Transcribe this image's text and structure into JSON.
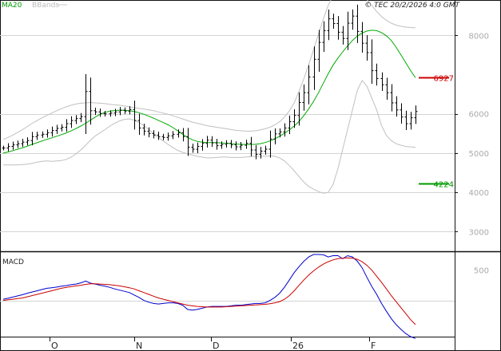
{
  "chart_data": [
    {
      "type": "ohlc",
      "legend": [
        {
          "label": "MA20",
          "color": "#00aa00"
        },
        {
          "label": "BBands",
          "color": "#c0c0c0"
        }
      ],
      "copyright": "© TEC 20/2/2026 4:0 GMT",
      "ylim": [
        2500,
        8900
      ],
      "y_ticks": [
        "3000",
        "4000",
        "5000",
        "6000",
        "8000"
      ],
      "x_labels": [
        "O",
        "N",
        "D",
        "26",
        "F"
      ],
      "grid": true,
      "levels": [
        {
          "value": 6927,
          "label": "6927",
          "color": "#cc0000"
        },
        {
          "value": 4224,
          "label": "4224",
          "color": "#009900"
        }
      ],
      "close": [
        5130,
        5170,
        5210,
        5240,
        5280,
        5320,
        5420,
        5460,
        5480,
        5520,
        5580,
        5630,
        5660,
        5750,
        5830,
        5880,
        5930,
        6570,
        6080,
        6050,
        6010,
        6000,
        6020,
        6050,
        6090,
        6070,
        6110,
        5830,
        5640,
        5560,
        5500,
        5460,
        5420,
        5400,
        5440,
        5480,
        5520,
        5420,
        5150,
        5100,
        5170,
        5250,
        5330,
        5260,
        5190,
        5220,
        5250,
        5210,
        5160,
        5200,
        5250,
        5080,
        4970,
        5050,
        5100,
        5360,
        5490,
        5540,
        5640,
        5800,
        5960,
        6290,
        6540,
        6940,
        7390,
        7820,
        8120,
        8420,
        8300,
        8080,
        7920,
        8310,
        8490,
        8100,
        7800,
        7560,
        7100,
        6900,
        6740,
        6540,
        6280,
        6100,
        5920,
        5750,
        5900,
        6060
      ],
      "ma20": [
        5000,
        5030,
        5065,
        5100,
        5135,
        5180,
        5225,
        5265,
        5310,
        5350,
        5390,
        5430,
        5470,
        5515,
        5565,
        5625,
        5690,
        5760,
        5840,
        5920,
        5990,
        6040,
        6070,
        6085,
        6095,
        6095,
        6080,
        6060,
        6030,
        5990,
        5940,
        5890,
        5835,
        5780,
        5720,
        5650,
        5570,
        5480,
        5400,
        5340,
        5300,
        5280,
        5270,
        5270,
        5270,
        5260,
        5250,
        5240,
        5230,
        5225,
        5220,
        5220,
        5225,
        5240,
        5270,
        5310,
        5365,
        5430,
        5510,
        5590,
        5690,
        5810,
        5960,
        6130,
        6320,
        6540,
        6780,
        7020,
        7240,
        7420,
        7580,
        7730,
        7870,
        7980,
        8060,
        8110,
        8130,
        8120,
        8070,
        7990,
        7870,
        7700,
        7500,
        7300,
        7100,
        6920
      ],
      "bb_upper": [
        5350,
        5400,
        5460,
        5530,
        5600,
        5680,
        5760,
        5830,
        5900,
        5960,
        6020,
        6080,
        6130,
        6180,
        6220,
        6250,
        6270,
        6280,
        6290,
        6280,
        6270,
        6260,
        6240,
        6230,
        6220,
        6200,
        6180,
        6160,
        6140,
        6120,
        6100,
        6080,
        6050,
        6020,
        5990,
        5950,
        5910,
        5870,
        5830,
        5790,
        5760,
        5730,
        5700,
        5680,
        5660,
        5640,
        5620,
        5600,
        5580,
        5570,
        5560,
        5560,
        5570,
        5590,
        5620,
        5660,
        5720,
        5800,
        5920,
        6080,
        6280,
        6580,
        6900,
        7260,
        7640,
        8030,
        8420,
        8760,
        9020,
        9170,
        9240,
        9260,
        9230,
        9150,
        9040,
        8910,
        8760,
        8610,
        8480,
        8380,
        8310,
        8260,
        8230,
        8210,
        8200,
        8190
      ],
      "bb_lower": [
        4700,
        4700,
        4700,
        4700,
        4710,
        4720,
        4740,
        4770,
        4790,
        4800,
        4790,
        4800,
        4810,
        4840,
        4900,
        4980,
        5080,
        5200,
        5330,
        5440,
        5520,
        5600,
        5690,
        5760,
        5820,
        5860,
        5870,
        5840,
        5780,
        5700,
        5600,
        5500,
        5400,
        5310,
        5220,
        5140,
        5070,
        5020,
        4980,
        4950,
        4920,
        4900,
        4880,
        4880,
        4890,
        4900,
        4900,
        4890,
        4890,
        4890,
        4900,
        4910,
        4920,
        4920,
        4920,
        4930,
        4920,
        4880,
        4800,
        4680,
        4550,
        4400,
        4260,
        4150,
        4080,
        4020,
        3980,
        4000,
        4200,
        4600,
        5100,
        5600,
        6100,
        6600,
        6850,
        6700,
        6400,
        6100,
        5700,
        5450,
        5320,
        5240,
        5200,
        5170,
        5160,
        5150
      ]
    },
    {
      "type": "line",
      "title": "MACD",
      "ylim": [
        -600,
        800
      ],
      "y_ticks": [
        "500"
      ],
      "zero_line": 0,
      "series": [
        {
          "name": "MACD",
          "color": "#0000cc",
          "values": [
            20,
            35,
            55,
            75,
            95,
            120,
            140,
            160,
            180,
            200,
            210,
            220,
            235,
            245,
            260,
            270,
            290,
            320,
            285,
            270,
            250,
            235,
            215,
            190,
            170,
            150,
            130,
            90,
            50,
            0,
            -30,
            -50,
            -60,
            -50,
            -40,
            -40,
            -50,
            -80,
            -150,
            -160,
            -150,
            -130,
            -110,
            -100,
            -100,
            -100,
            -100,
            -90,
            -80,
            -80,
            -70,
            -60,
            -50,
            -50,
            -40,
            0,
            50,
            120,
            220,
            340,
            460,
            560,
            650,
            720,
            760,
            760,
            755,
            720,
            740,
            740,
            690,
            740,
            720,
            650,
            540,
            380,
            230,
            100,
            -50,
            -180,
            -300,
            -400,
            -480,
            -550,
            -600,
            -630
          ]
        },
        {
          "name": "Signal",
          "color": "#cc0000",
          "values": [
            0,
            10,
            20,
            30,
            40,
            60,
            80,
            100,
            120,
            140,
            160,
            180,
            200,
            215,
            230,
            240,
            250,
            265,
            275,
            275,
            270,
            265,
            260,
            250,
            240,
            225,
            210,
            190,
            160,
            130,
            100,
            70,
            40,
            20,
            0,
            -20,
            -40,
            -60,
            -80,
            -90,
            -100,
            -105,
            -110,
            -110,
            -110,
            -110,
            -105,
            -100,
            -95,
            -90,
            -85,
            -80,
            -75,
            -70,
            -65,
            -55,
            -40,
            -20,
            20,
            80,
            160,
            250,
            340,
            420,
            490,
            550,
            600,
            640,
            670,
            690,
            700,
            705,
            700,
            680,
            640,
            580,
            500,
            400,
            300,
            190,
            80,
            -20,
            -120,
            -220,
            -320,
            -400
          ]
        }
      ]
    }
  ]
}
